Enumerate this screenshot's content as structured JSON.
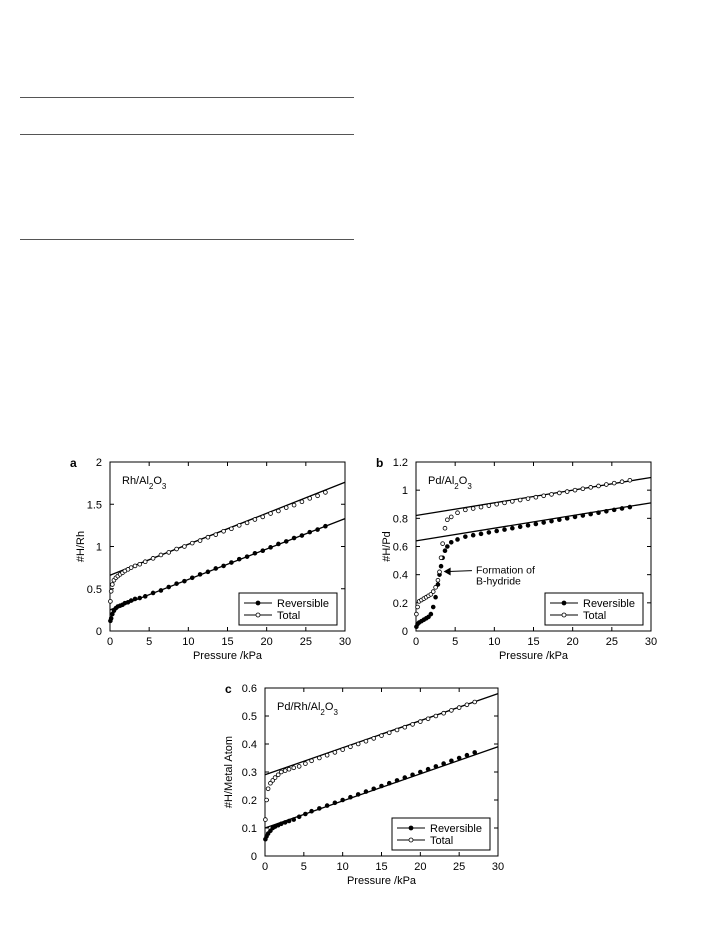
{
  "chart_data": [
    {
      "type": "scatter",
      "panel_letter": "a",
      "title": "Rh/Al",
      "title_sub1": "2",
      "title_mid": "O",
      "title_sub2": "3",
      "xlabel": "Pressure /kPa",
      "ylabel": "#H/Rh",
      "xlim": [
        0,
        30
      ],
      "ylim": [
        0,
        2
      ],
      "xticks": [
        "0",
        "5",
        "10",
        "15",
        "20",
        "25",
        "30"
      ],
      "yticks": [
        "0",
        "0.5",
        "1",
        "1.5",
        "2"
      ],
      "legend": {
        "position": "bottom-right",
        "entries": [
          "Reversible",
          "Total"
        ]
      },
      "fit_lines": [
        {
          "from": [
            0,
            0.66
          ],
          "to": [
            30,
            1.76
          ]
        },
        {
          "from": [
            0,
            0.25
          ],
          "to": [
            30,
            1.33
          ]
        }
      ],
      "series": [
        {
          "name": "Reversible",
          "marker": "filled-circle",
          "x": [
            0.05,
            0.15,
            0.3,
            0.5,
            0.75,
            1.0,
            1.3,
            1.6,
            1.9,
            2.3,
            2.7,
            3.2,
            3.8,
            4.5,
            5.5,
            6.5,
            7.5,
            8.5,
            9.5,
            10.5,
            11.5,
            12.5,
            13.5,
            14.5,
            15.5,
            16.5,
            17.5,
            18.5,
            19.5,
            20.5,
            21.5,
            22.5,
            23.5,
            24.5,
            25.5,
            26.5,
            27.5
          ],
          "y": [
            0.12,
            0.15,
            0.2,
            0.24,
            0.27,
            0.29,
            0.3,
            0.31,
            0.33,
            0.34,
            0.36,
            0.38,
            0.39,
            0.41,
            0.45,
            0.48,
            0.52,
            0.56,
            0.59,
            0.63,
            0.67,
            0.7,
            0.74,
            0.77,
            0.81,
            0.85,
            0.88,
            0.92,
            0.95,
            0.99,
            1.03,
            1.06,
            1.1,
            1.13,
            1.17,
            1.2,
            1.24
          ]
        },
        {
          "name": "Total",
          "marker": "open-circle",
          "x": [
            0.05,
            0.15,
            0.3,
            0.5,
            0.75,
            1.0,
            1.3,
            1.6,
            1.9,
            2.3,
            2.7,
            3.2,
            3.8,
            4.5,
            5.5,
            6.5,
            7.5,
            8.5,
            9.5,
            10.5,
            11.5,
            12.5,
            13.5,
            14.5,
            15.5,
            16.5,
            17.5,
            18.5,
            19.5,
            20.5,
            21.5,
            22.5,
            23.5,
            24.5,
            25.5,
            26.5,
            27.5
          ],
          "y": [
            0.35,
            0.47,
            0.55,
            0.6,
            0.63,
            0.65,
            0.67,
            0.69,
            0.71,
            0.73,
            0.75,
            0.77,
            0.79,
            0.82,
            0.86,
            0.9,
            0.93,
            0.97,
            1.0,
            1.04,
            1.07,
            1.11,
            1.14,
            1.18,
            1.21,
            1.25,
            1.28,
            1.32,
            1.35,
            1.39,
            1.42,
            1.46,
            1.49,
            1.53,
            1.57,
            1.6,
            1.64
          ]
        }
      ]
    },
    {
      "type": "scatter",
      "panel_letter": "b",
      "title": "Pd/Al",
      "title_sub1": "2",
      "title_mid": "O",
      "title_sub2": "3",
      "xlabel": "Pressure /kPa",
      "ylabel": "#H/Pd",
      "xlim": [
        0,
        30
      ],
      "ylim": [
        0,
        1.2
      ],
      "xticks": [
        "0",
        "5",
        "10",
        "15",
        "20",
        "25",
        "30"
      ],
      "yticks": [
        "0",
        "0.2",
        "0.4",
        "0.6",
        "0.8",
        "1",
        "1.2"
      ],
      "legend": {
        "position": "bottom-right",
        "entries": [
          "Reversible",
          "Total"
        ]
      },
      "annotation": {
        "lines": [
          "Formation of",
          "B-hydride"
        ],
        "arrow_to": [
          3.4,
          0.43
        ],
        "text_at": [
          7.4,
          0.4
        ]
      },
      "fit_lines": [
        {
          "from": [
            0,
            0.82
          ],
          "to": [
            30,
            1.09
          ]
        },
        {
          "from": [
            0,
            0.64
          ],
          "to": [
            30,
            0.91
          ]
        }
      ],
      "series": [
        {
          "name": "Reversible",
          "marker": "filled-circle",
          "x": [
            0.05,
            0.2,
            0.4,
            0.7,
            1.0,
            1.3,
            1.6,
            1.9,
            2.2,
            2.5,
            2.8,
            3.0,
            3.2,
            3.4,
            3.7,
            4.0,
            4.5,
            5.3,
            6.3,
            7.3,
            8.3,
            9.3,
            10.3,
            11.3,
            12.3,
            13.3,
            14.3,
            15.3,
            16.3,
            17.3,
            18.3,
            19.3,
            20.3,
            21.3,
            22.3,
            23.3,
            24.3,
            25.3,
            26.3,
            27.3
          ],
          "y": [
            0.03,
            0.05,
            0.06,
            0.07,
            0.08,
            0.09,
            0.1,
            0.12,
            0.17,
            0.24,
            0.33,
            0.4,
            0.46,
            0.52,
            0.57,
            0.6,
            0.63,
            0.65,
            0.67,
            0.68,
            0.69,
            0.7,
            0.71,
            0.72,
            0.73,
            0.74,
            0.75,
            0.76,
            0.77,
            0.78,
            0.79,
            0.8,
            0.81,
            0.82,
            0.83,
            0.84,
            0.85,
            0.86,
            0.87,
            0.88
          ]
        },
        {
          "name": "Total",
          "marker": "open-circle",
          "x": [
            0.05,
            0.2,
            0.4,
            0.7,
            1.0,
            1.3,
            1.6,
            1.9,
            2.2,
            2.5,
            2.8,
            3.0,
            3.2,
            3.4,
            3.7,
            4.0,
            4.5,
            5.3,
            6.3,
            7.3,
            8.3,
            9.3,
            10.3,
            11.3,
            12.3,
            13.3,
            14.3,
            15.3,
            16.3,
            17.3,
            18.3,
            19.3,
            20.3,
            21.3,
            22.3,
            23.3,
            24.3,
            25.3,
            26.3,
            27.3
          ],
          "y": [
            0.12,
            0.17,
            0.21,
            0.22,
            0.23,
            0.24,
            0.25,
            0.26,
            0.28,
            0.31,
            0.36,
            0.42,
            0.52,
            0.62,
            0.73,
            0.79,
            0.81,
            0.84,
            0.86,
            0.87,
            0.88,
            0.89,
            0.9,
            0.91,
            0.92,
            0.93,
            0.94,
            0.95,
            0.96,
            0.97,
            0.98,
            0.99,
            1.0,
            1.01,
            1.02,
            1.03,
            1.04,
            1.05,
            1.06,
            1.07
          ]
        }
      ]
    },
    {
      "type": "scatter",
      "panel_letter": "c",
      "title": "Pd/Rh/Al",
      "title_sub1": "2",
      "title_mid": "O",
      "title_sub2": "3",
      "xlabel": "Pressure /kPa",
      "ylabel": "#H/Metal Atom",
      "xlim": [
        0,
        30
      ],
      "ylim": [
        0,
        0.6
      ],
      "xticks": [
        "0",
        "5",
        "10",
        "15",
        "20",
        "25",
        "30"
      ],
      "yticks": [
        "0",
        "0.1",
        "0.2",
        "0.3",
        "0.4",
        "0.5",
        "0.6"
      ],
      "legend": {
        "position": "bottom-right",
        "entries": [
          "Reversible",
          "Total"
        ]
      },
      "fit_lines": [
        {
          "from": [
            0,
            0.29
          ],
          "to": [
            30,
            0.58
          ]
        },
        {
          "from": [
            0,
            0.1
          ],
          "to": [
            30,
            0.39
          ]
        }
      ],
      "series": [
        {
          "name": "Reversible",
          "marker": "filled-circle",
          "x": [
            0.05,
            0.2,
            0.4,
            0.7,
            1.0,
            1.3,
            1.7,
            2.1,
            2.6,
            3.1,
            3.7,
            4.4,
            5.2,
            6.0,
            7.0,
            8.0,
            9.0,
            10.0,
            11.0,
            12.0,
            13.0,
            14.0,
            15.0,
            16.0,
            17.0,
            18.0,
            19.0,
            20.0,
            21.0,
            22.0,
            23.0,
            24.0,
            25.0,
            26.0,
            27.0
          ],
          "y": [
            0.06,
            0.07,
            0.08,
            0.09,
            0.1,
            0.105,
            0.11,
            0.115,
            0.12,
            0.125,
            0.13,
            0.14,
            0.15,
            0.16,
            0.17,
            0.18,
            0.19,
            0.2,
            0.21,
            0.22,
            0.23,
            0.24,
            0.25,
            0.26,
            0.27,
            0.28,
            0.29,
            0.3,
            0.31,
            0.32,
            0.33,
            0.34,
            0.35,
            0.36,
            0.37
          ]
        },
        {
          "name": "Total",
          "marker": "open-circle",
          "x": [
            0.05,
            0.2,
            0.4,
            0.7,
            1.0,
            1.3,
            1.7,
            2.1,
            2.6,
            3.1,
            3.7,
            4.4,
            5.2,
            6.0,
            7.0,
            8.0,
            9.0,
            10.0,
            11.0,
            12.0,
            13.0,
            14.0,
            15.0,
            16.0,
            17.0,
            18.0,
            19.0,
            20.0,
            21.0,
            22.0,
            23.0,
            24.0,
            25.0,
            26.0,
            27.0
          ],
          "y": [
            0.13,
            0.2,
            0.24,
            0.26,
            0.27,
            0.28,
            0.29,
            0.3,
            0.305,
            0.31,
            0.315,
            0.32,
            0.33,
            0.34,
            0.35,
            0.36,
            0.37,
            0.38,
            0.39,
            0.4,
            0.41,
            0.42,
            0.43,
            0.44,
            0.45,
            0.46,
            0.47,
            0.48,
            0.49,
            0.5,
            0.51,
            0.52,
            0.53,
            0.54,
            0.55
          ]
        }
      ]
    }
  ]
}
